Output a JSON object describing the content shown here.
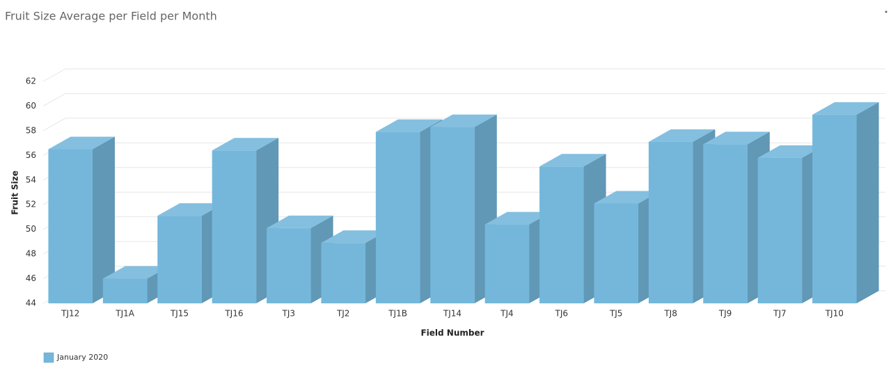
{
  "chart_data": {
    "type": "bar3d",
    "title": "Fruit Size Average per Field per Month",
    "x_label": "Field Number",
    "y_label": "Fruit Size",
    "categories": [
      "TJ12",
      "TJ1A",
      "TJ15",
      "TJ16",
      "TJ3",
      "TJ2",
      "TJ1B",
      "TJ14",
      "TJ4",
      "TJ6",
      "TJ5",
      "TJ8",
      "TJ9",
      "TJ7",
      "TJ10"
    ],
    "series": [
      {
        "name": "January 2020",
        "color": "#74b7db",
        "values": [
          56.5,
          46.0,
          51.1,
          56.4,
          50.1,
          48.9,
          57.9,
          58.3,
          50.4,
          55.1,
          52.1,
          57.1,
          56.9,
          55.8,
          59.3
        ]
      }
    ],
    "ylim": [
      44,
      62
    ],
    "yticks": [
      44,
      46,
      48,
      50,
      52,
      54,
      56,
      58,
      60,
      62
    ],
    "grid": true,
    "legend": "bottom-left"
  }
}
